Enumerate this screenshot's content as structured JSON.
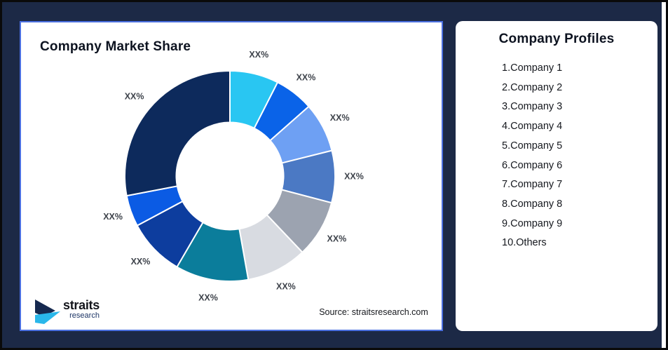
{
  "canvas": {
    "background_color": "#1c2946",
    "frame_border_color": "#0a0a0a"
  },
  "market_share_card": {
    "title": "Company Market Share",
    "source": "Source: straitsresearch.com",
    "border_color": "#4a6fe0",
    "logo": {
      "name": "straits",
      "sub": "research",
      "navy": "#16294f",
      "cyan": "#29b7ea"
    }
  },
  "chart_data": {
    "type": "pie",
    "subtype": "donut",
    "title": "Company Market Share",
    "legend_position": "none",
    "grid": false,
    "inner_radius_ratio": 0.51,
    "start_angle_deg": 0,
    "direction": "clockwise",
    "note": "all slice data labels shown as placeholder XX%",
    "segments": [
      {
        "label": "XX%",
        "value_pct": 7.5,
        "color": "#29c6f2"
      },
      {
        "label": "XX%",
        "value_pct": 6.0,
        "color": "#0a63e8"
      },
      {
        "label": "XX%",
        "value_pct": 7.6,
        "color": "#6ea0f3"
      },
      {
        "label": "XX%",
        "value_pct": 8.0,
        "color": "#4b79c4"
      },
      {
        "label": "XX%",
        "value_pct": 8.8,
        "color": "#9ca3b0"
      },
      {
        "label": "XX%",
        "value_pct": 9.3,
        "color": "#d8dbe1"
      },
      {
        "label": "XX%",
        "value_pct": 11.2,
        "color": "#0b7d9b"
      },
      {
        "label": "XX%",
        "value_pct": 8.8,
        "color": "#0d3d9e"
      },
      {
        "label": "XX%",
        "value_pct": 4.8,
        "color": "#0b5be4"
      },
      {
        "label": "XX%",
        "value_pct": 28.0,
        "color": "#0d2a5c"
      }
    ]
  },
  "profiles_card": {
    "title": "Company Profiles",
    "items": [
      "1.Company 1",
      "2.Company 2",
      "3.Company 3",
      "4.Company 4",
      "5.Company 5",
      "6.Company 6",
      "7.Company 7",
      "8.Company 8",
      "9.Company 9",
      "10.Others"
    ]
  }
}
